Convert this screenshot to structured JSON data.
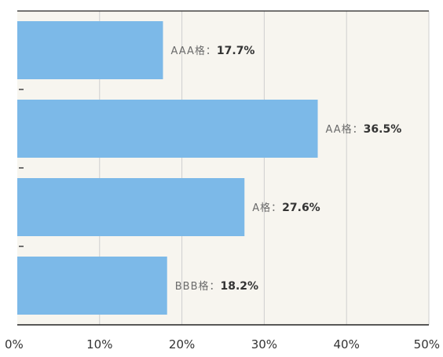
{
  "chart_data": {
    "type": "bar",
    "orientation": "horizontal",
    "title": "",
    "xlabel": "",
    "ylabel": "",
    "categories": [
      "AAA格",
      "AA格",
      "A格",
      "BBB格"
    ],
    "values": [
      17.7,
      36.5,
      27.6,
      18.2
    ],
    "value_labels": [
      "17.7%",
      "36.5%",
      "27.6%",
      "18.2%"
    ],
    "xlim": [
      0,
      50
    ],
    "x_ticks": [
      0,
      10,
      20,
      30,
      40,
      50
    ],
    "x_tick_labels": [
      "0%",
      "10%",
      "20%",
      "30%",
      "40%",
      "50%"
    ],
    "grid": true,
    "legend": "none",
    "colors": {
      "bar": "#7cb9e8",
      "plot_background": "#f7f5ef",
      "gridline": "#cfcfcf",
      "axis": "#222222"
    }
  }
}
